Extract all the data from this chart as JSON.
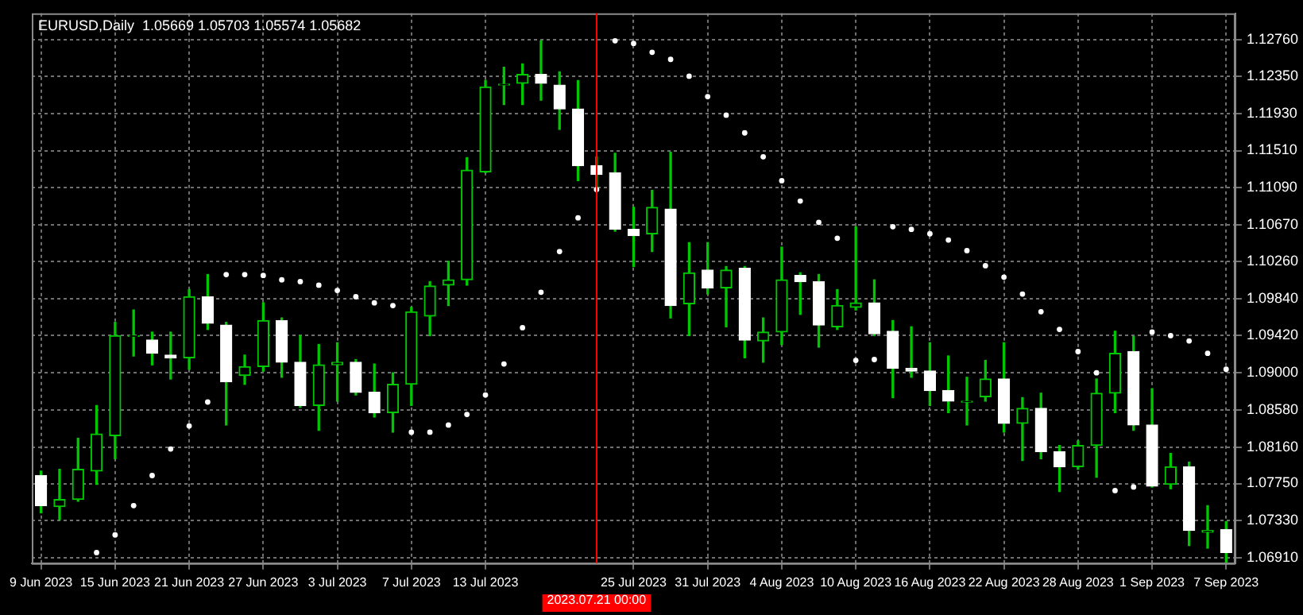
{
  "chart_data": {
    "type": "candlestick",
    "title": "EURUSD,Daily  1.05669 1.05703 1.05574 1.05682",
    "categories": [
      "9 Jun 2023",
      null,
      null,
      null,
      "15 Jun 2023",
      null,
      null,
      null,
      "21 Jun 2023",
      null,
      null,
      null,
      "27 Jun 2023",
      null,
      null,
      null,
      "3 Jul 2023",
      null,
      null,
      null,
      "7 Jul 2023",
      null,
      null,
      null,
      "13 Jul 2023",
      null,
      null,
      null,
      null,
      null,
      "2023.07.21 00:00",
      null,
      "25 Jul 2023",
      null,
      null,
      null,
      "31 Jul 2023",
      null,
      null,
      null,
      "4 Aug 2023",
      null,
      null,
      null,
      "10 Aug 2023",
      null,
      null,
      null,
      "16 Aug 2023",
      null,
      null,
      null,
      "22 Aug 2023",
      null,
      null,
      null,
      "28 Aug 2023",
      null,
      null,
      null,
      "1 Sep 2023",
      null,
      null,
      null,
      "7 Sep 2023"
    ],
    "series": [
      {
        "color": "#00c800",
        "colors": [
          "#ffffff",
          "#00c800",
          "#00c800",
          "#00c800",
          "#00c800",
          "#00c800",
          "#ffffff",
          "#ffffff",
          "#00c800",
          "#ffffff",
          "#ffffff",
          "#00c800",
          "#00c800",
          "#ffffff",
          "#ffffff",
          "#00c800",
          "#00c800",
          "#ffffff",
          "#ffffff",
          "#00c800",
          "#00c800",
          "#00c800",
          "#00c800",
          "#00c800",
          "#00c800",
          "#00c800",
          "#00c800",
          "#ffffff",
          "#ffffff",
          "#ffffff",
          "#ffffff",
          "#ffffff",
          "#ffffff",
          "#00c800",
          "#ffffff",
          "#00c800",
          "#ffffff",
          "#00c800",
          "#ffffff",
          "#00c800",
          "#00c800",
          "#ffffff",
          "#ffffff",
          "#00c800",
          "#00c800",
          "#ffffff",
          "#ffffff",
          "#ffffff",
          "#ffffff",
          "#ffffff",
          "#00c800",
          "#00c800",
          "#ffffff",
          "#00c800",
          "#ffffff",
          "#ffffff",
          "#00c800",
          "#00c800",
          "#00c800",
          "#ffffff",
          "#ffffff",
          "#00c800",
          "#ffffff",
          "#00c800",
          "#ffffff"
        ],
        "ohlc": [
          [
            1.0784,
            1.0789,
            1.0742,
            1.075
          ],
          [
            1.0749,
            1.0791,
            1.0734,
            1.0757
          ],
          [
            1.0757,
            1.0826,
            1.0755,
            1.0791
          ],
          [
            1.0789,
            1.0863,
            1.0774,
            1.0831
          ],
          [
            1.0829,
            1.0957,
            1.0803,
            1.0942
          ],
          [
            1.0941,
            1.0971,
            1.0919,
            1.0942
          ],
          [
            1.0937,
            1.0946,
            1.0909,
            1.0922
          ],
          [
            1.092,
            1.0946,
            1.0893,
            1.0917
          ],
          [
            1.0917,
            1.0994,
            1.0904,
            1.0986
          ],
          [
            1.0986,
            1.1011,
            1.0949,
            1.0956
          ],
          [
            1.0954,
            1.0957,
            1.0841,
            1.089
          ],
          [
            1.0897,
            1.092,
            1.0887,
            1.0907
          ],
          [
            1.0907,
            1.0979,
            1.0902,
            1.0959
          ],
          [
            1.0959,
            1.0962,
            1.0895,
            1.0912
          ],
          [
            1.0912,
            1.0942,
            1.0861,
            1.0863
          ],
          [
            1.0863,
            1.0932,
            1.0835,
            1.0909
          ],
          [
            1.0909,
            1.0934,
            1.0868,
            1.0912
          ],
          [
            1.0912,
            1.0915,
            1.0875,
            1.0878
          ],
          [
            1.0878,
            1.091,
            1.085,
            1.0855
          ],
          [
            1.0855,
            1.09,
            1.0833,
            1.0887
          ],
          [
            1.0887,
            1.0974,
            1.0863,
            1.0969
          ],
          [
            1.0964,
            1.1003,
            1.0942,
            1.0998
          ],
          [
            1.0999,
            1.1026,
            1.0976,
            1.1005
          ],
          [
            1.1005,
            1.1143,
            1.0999,
            1.1129
          ],
          [
            1.1127,
            1.123,
            1.1126,
            1.1223
          ],
          [
            1.1225,
            1.1245,
            1.1203,
            1.1226
          ],
          [
            1.1227,
            1.1249,
            1.1203,
            1.1237
          ],
          [
            1.1237,
            1.1275,
            1.1208,
            1.1227
          ],
          [
            1.1225,
            1.124,
            1.1175,
            1.1198
          ],
          [
            1.1198,
            1.123,
            1.1117,
            1.1134
          ],
          [
            1.1134,
            1.1144,
            1.1106,
            1.1124
          ],
          [
            1.1126,
            1.1148,
            1.106,
            1.1062
          ],
          [
            1.1062,
            1.1087,
            1.102,
            1.1055
          ],
          [
            1.1057,
            1.1106,
            1.1037,
            1.1087
          ],
          [
            1.1085,
            1.1149,
            1.0962,
            1.0976
          ],
          [
            1.0978,
            1.1047,
            1.0942,
            1.1013
          ],
          [
            1.1016,
            1.1047,
            1.0989,
            1.0996
          ],
          [
            1.0996,
            1.102,
            1.0952,
            1.1016
          ],
          [
            1.1018,
            1.102,
            1.0917,
            1.0937
          ],
          [
            1.0936,
            1.0962,
            1.0912,
            1.0946
          ],
          [
            1.0946,
            1.1042,
            1.0932,
            1.1005
          ],
          [
            1.101,
            1.1013,
            1.0966,
            1.1003
          ],
          [
            1.1003,
            1.1011,
            1.0929,
            1.0954
          ],
          [
            1.0952,
            1.0994,
            1.0949,
            1.0976
          ],
          [
            1.0974,
            1.1065,
            1.0971,
            1.0979
          ],
          [
            1.0979,
            1.1005,
            1.0942,
            1.0944
          ],
          [
            1.0947,
            1.0959,
            1.0872,
            1.0905
          ],
          [
            1.0905,
            1.0952,
            1.0895,
            1.0902
          ],
          [
            1.0902,
            1.0934,
            1.0863,
            1.088
          ],
          [
            1.088,
            1.0919,
            1.0855,
            1.0868
          ],
          [
            1.0867,
            1.0895,
            1.0841,
            1.0868
          ],
          [
            1.0873,
            1.0914,
            1.0868,
            1.0893
          ],
          [
            1.0893,
            1.0934,
            1.0833,
            1.0843
          ],
          [
            1.0843,
            1.0872,
            1.0801,
            1.086
          ],
          [
            1.086,
            1.0877,
            1.0803,
            1.0811
          ],
          [
            1.0811,
            1.0818,
            1.0766,
            1.0794
          ],
          [
            1.0794,
            1.0823,
            1.0791,
            1.0818
          ],
          [
            1.0818,
            1.0893,
            1.0782,
            1.0877
          ],
          [
            1.0877,
            1.0947,
            1.0855,
            1.0922
          ],
          [
            1.0924,
            1.0941,
            1.0835,
            1.0841
          ],
          [
            1.0841,
            1.0882,
            1.0771,
            1.0772
          ],
          [
            1.0774,
            1.0809,
            1.0769,
            1.0794
          ],
          [
            1.0794,
            1.0799,
            1.0705,
            1.0722
          ],
          [
            1.072,
            1.075,
            1.0702,
            1.0722
          ],
          [
            1.0723,
            1.0732,
            1.0686,
            1.0697
          ]
        ]
      },
      {
        "type": "scatter",
        "color": "#ffffff",
        "marker": "circle",
        "values": [
          null,
          null,
          null,
          1.0697,
          1.0717,
          1.075,
          1.0784,
          1.0814,
          1.084,
          1.0867,
          1.1011,
          1.1011,
          1.101,
          1.1005,
          1.1003,
          1.0999,
          1.0993,
          1.0986,
          1.0979,
          1.0976,
          1.0833,
          1.0833,
          1.0841,
          1.0853,
          1.0875,
          1.091,
          1.0951,
          1.0991,
          1.1037,
          1.1075,
          1.1107,
          1.1275,
          1.1272,
          1.1262,
          1.1254,
          1.1235,
          1.1212,
          1.1191,
          1.1171,
          1.1144,
          1.1117,
          1.1094,
          1.107,
          1.1052,
          1.0914,
          1.0915,
          1.1065,
          1.1062,
          1.1057,
          1.105,
          1.1038,
          1.1021,
          1.1008,
          1.0989,
          1.0969,
          1.0949,
          1.0924,
          1.09,
          1.0767,
          1.0771,
          1.0946,
          1.0942,
          1.0936,
          1.0922,
          1.0904
        ]
      }
    ],
    "ylim": [
      1.0685,
      1.1306
    ],
    "yticks": [
      {
        "value": 1.0691,
        "label": "1.06910"
      },
      {
        "value": 1.0733,
        "label": "1.07330"
      },
      {
        "value": 1.0775,
        "label": "1.07750"
      },
      {
        "value": 1.0816,
        "label": "1.08160"
      },
      {
        "value": 1.0858,
        "label": "1.08580"
      },
      {
        "value": 1.09,
        "label": "1.09000"
      },
      {
        "value": 1.0942,
        "label": "1.09420"
      },
      {
        "value": 1.0984,
        "label": "1.09840"
      },
      {
        "value": 1.1026,
        "label": "1.10260"
      },
      {
        "value": 1.1067,
        "label": "1.10670"
      },
      {
        "value": 1.1109,
        "label": "1.11090"
      },
      {
        "value": 1.1151,
        "label": "1.11510"
      },
      {
        "value": 1.1193,
        "label": "1.11930"
      },
      {
        "value": 1.1235,
        "label": "1.12350"
      },
      {
        "value": 1.1276,
        "label": "1.12760"
      }
    ],
    "ref_lines": [
      {
        "axis": "x",
        "value": "2023.07.21 00:00",
        "color": "#ff0000"
      }
    ],
    "grid": true,
    "legend": false
  }
}
